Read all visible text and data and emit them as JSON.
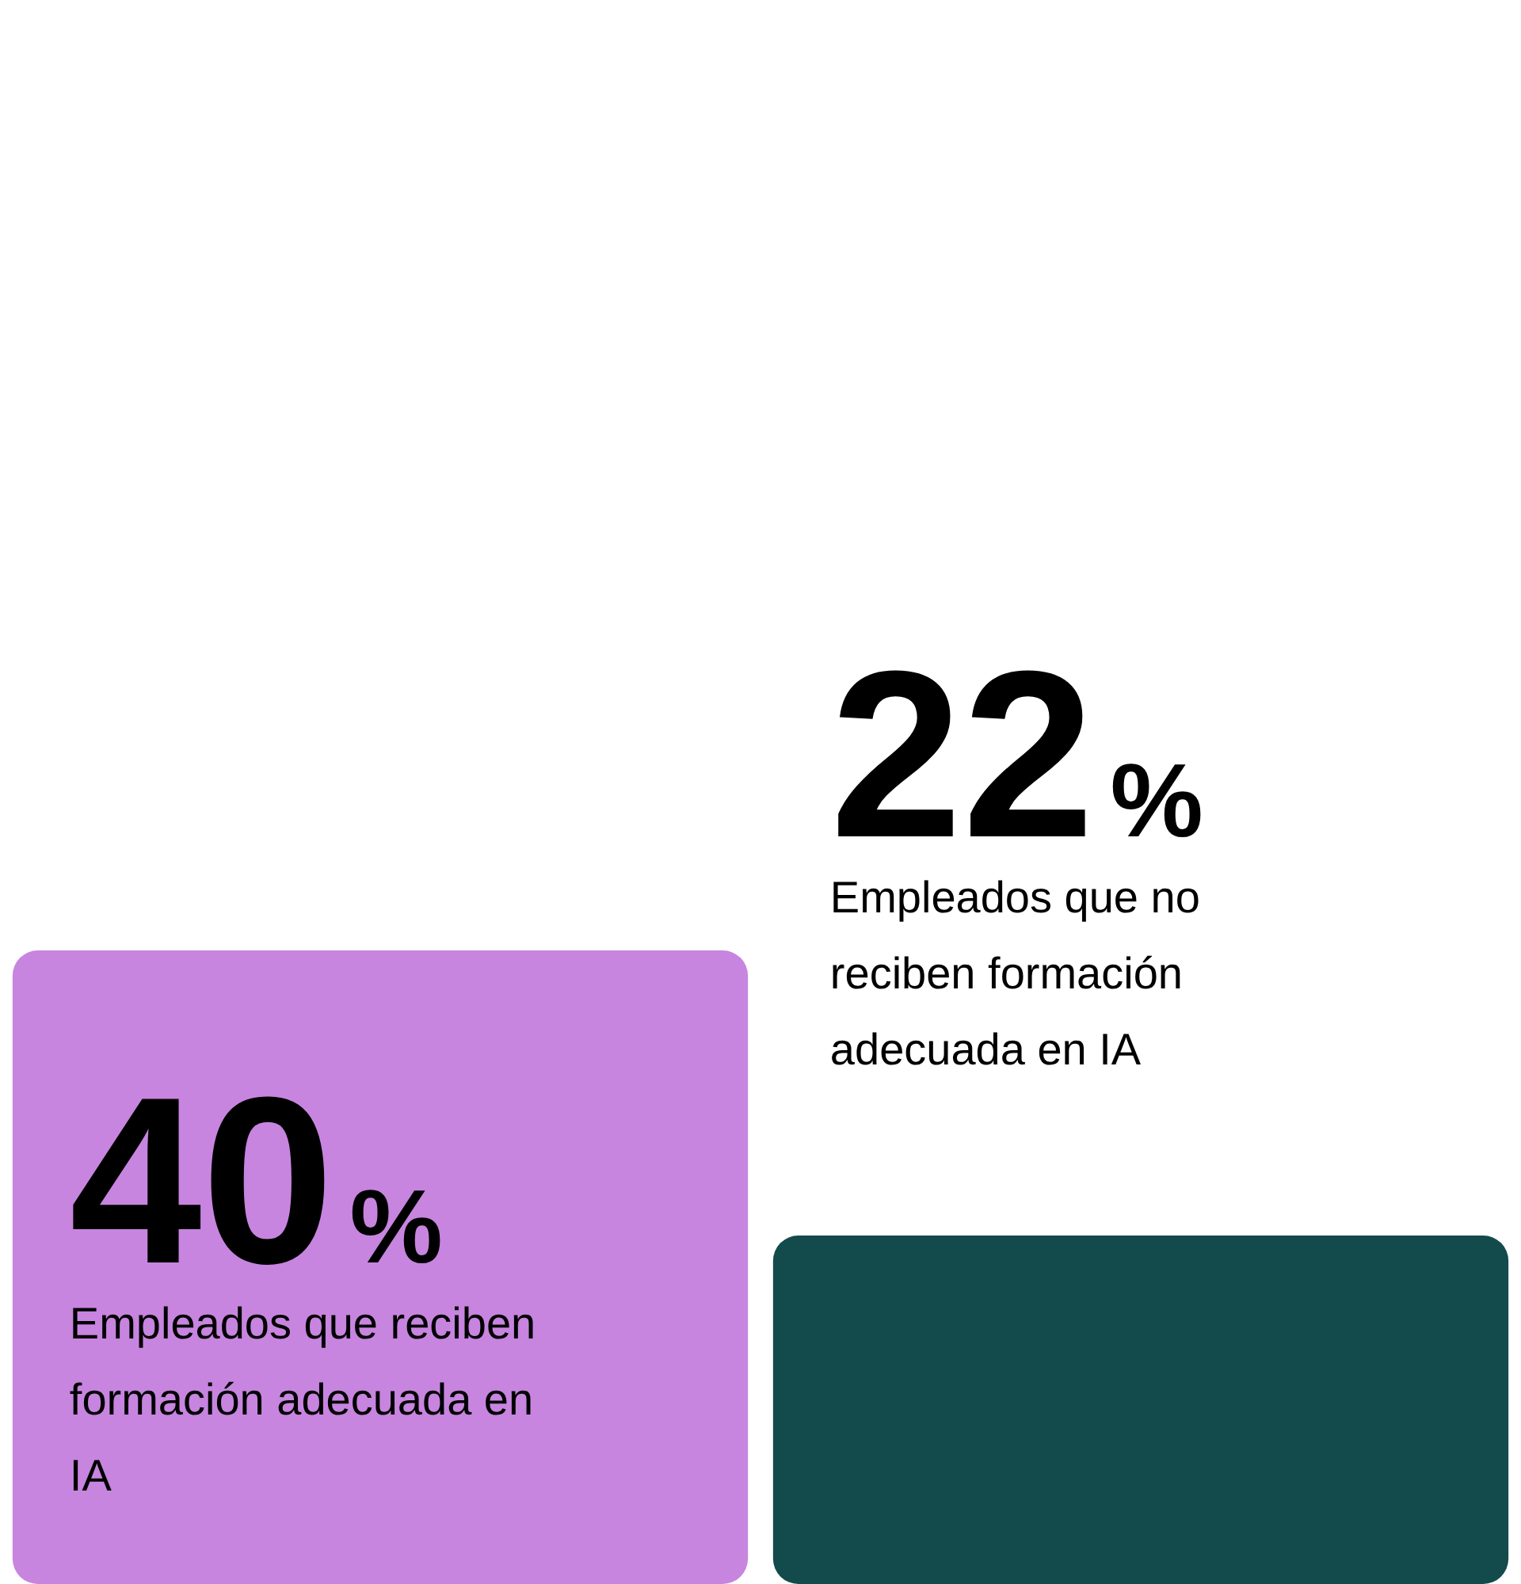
{
  "chart_data": {
    "type": "bar",
    "categories": [
      "Empleados que reciben formación adecuada en IA",
      "Empleados que no reciben formación adecuada en IA"
    ],
    "values": [
      40,
      22
    ],
    "colors": [
      "#c785df",
      "#134a4c"
    ],
    "value_labels": [
      "40%",
      "22%"
    ],
    "tick_labels": false
  }
}
